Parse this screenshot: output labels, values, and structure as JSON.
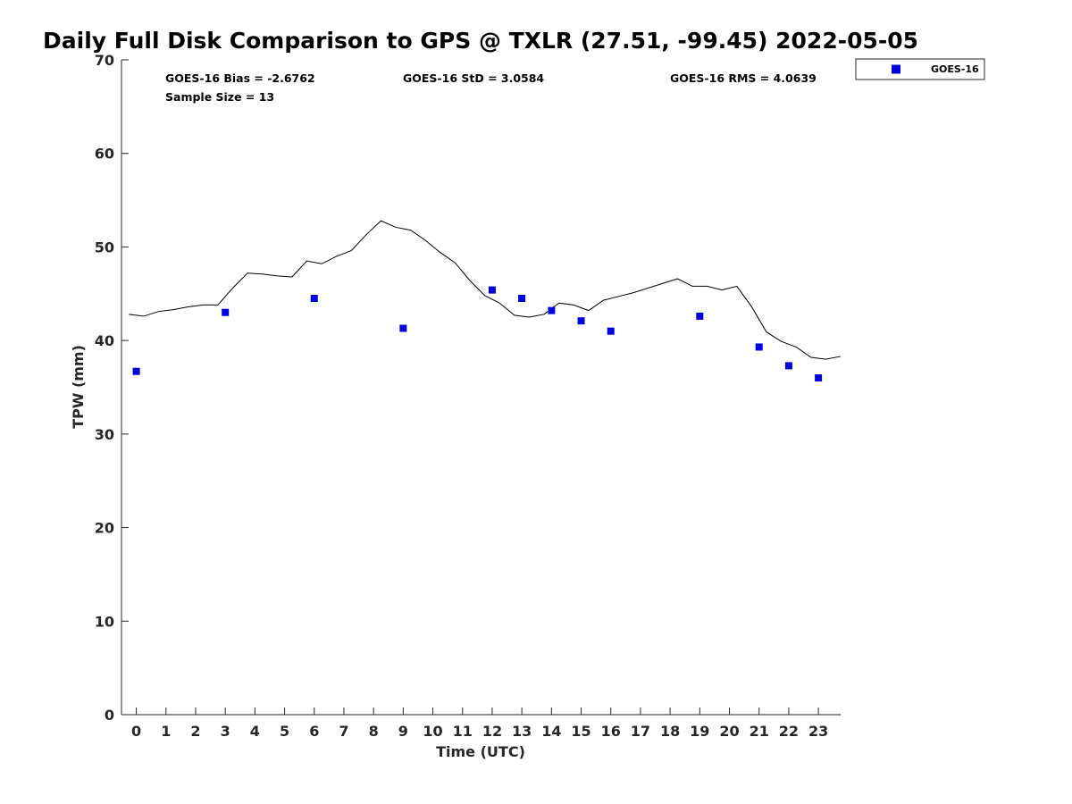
{
  "chart_data": {
    "type": "scatter",
    "title": "Daily Full Disk Comparison to GPS @ TXLR (27.51, -99.45) 2022-05-05",
    "xlabel": "Time (UTC)",
    "ylabel": "TPW (mm)",
    "xlim": [
      -0.5,
      23.75
    ],
    "ylim": [
      0,
      70
    ],
    "xticks": [
      0,
      1,
      2,
      3,
      4,
      5,
      6,
      7,
      8,
      9,
      10,
      11,
      12,
      13,
      14,
      15,
      16,
      17,
      18,
      19,
      20,
      21,
      22,
      23
    ],
    "xtick_labels": [
      "0",
      "1",
      "2",
      "3",
      "4",
      "5",
      "6",
      "7",
      "8",
      "9",
      "10",
      "11",
      "12",
      "13",
      "14",
      "15",
      "16",
      "17",
      "18",
      "19",
      "20",
      "21",
      "22",
      "23"
    ],
    "yticks": [
      0,
      10,
      20,
      30,
      40,
      50,
      60,
      70
    ],
    "ytick_labels": [
      "0",
      "10",
      "20",
      "30",
      "40",
      "50",
      "60",
      "70"
    ],
    "grid": false,
    "legend_position": "top-right, outside plot",
    "stats": {
      "bias": "GOES-16 Bias = -2.6762",
      "std": "GOES-16 StD = 3.0584",
      "rms": "GOES-16 RMS = 4.0639",
      "sample": "Sample Size = 13"
    },
    "series": [
      {
        "name": "GOES-16",
        "kind": "scatter",
        "marker": "square",
        "color": "#0000dd",
        "x": [
          0,
          3,
          6,
          9,
          12,
          13,
          14,
          15,
          16,
          19,
          21,
          22,
          23
        ],
        "y": [
          36.7,
          43.0,
          44.5,
          41.3,
          45.4,
          44.5,
          43.2,
          42.1,
          41.0,
          42.6,
          39.3,
          37.3,
          36.0
        ]
      },
      {
        "kind": "line",
        "color": "#000000",
        "x": [
          -0.25,
          0.25,
          0.75,
          1.25,
          1.75,
          2.25,
          2.75,
          3.25,
          3.75,
          4.25,
          4.75,
          5.25,
          5.75,
          6.25,
          6.75,
          7.25,
          7.75,
          8.25,
          8.75,
          9.25,
          9.75,
          10.25,
          10.75,
          11.25,
          11.75,
          12.25,
          12.75,
          13.25,
          13.75,
          14.25,
          14.75,
          15.25,
          15.75,
          16.25,
          16.75,
          17.25,
          17.75,
          18.25,
          18.75,
          19.25,
          19.75,
          20.25,
          20.75,
          21.25,
          21.75,
          22.25,
          22.75,
          23.25,
          23.75
        ],
        "y": [
          42.8,
          42.6,
          43.1,
          43.3,
          43.6,
          43.8,
          43.8,
          45.6,
          47.2,
          47.1,
          46.9,
          46.8,
          48.5,
          48.2,
          49.0,
          49.6,
          51.3,
          52.8,
          52.1,
          51.8,
          50.7,
          49.4,
          48.3,
          46.4,
          44.8,
          44.0,
          42.7,
          42.5,
          42.8,
          44.0,
          43.8,
          43.2,
          44.3,
          44.7,
          45.1,
          45.6,
          46.1,
          46.6,
          45.8,
          45.8,
          45.4,
          45.8,
          43.6,
          40.9,
          39.9,
          39.3,
          38.2,
          38.0,
          38.3
        ]
      }
    ]
  }
}
